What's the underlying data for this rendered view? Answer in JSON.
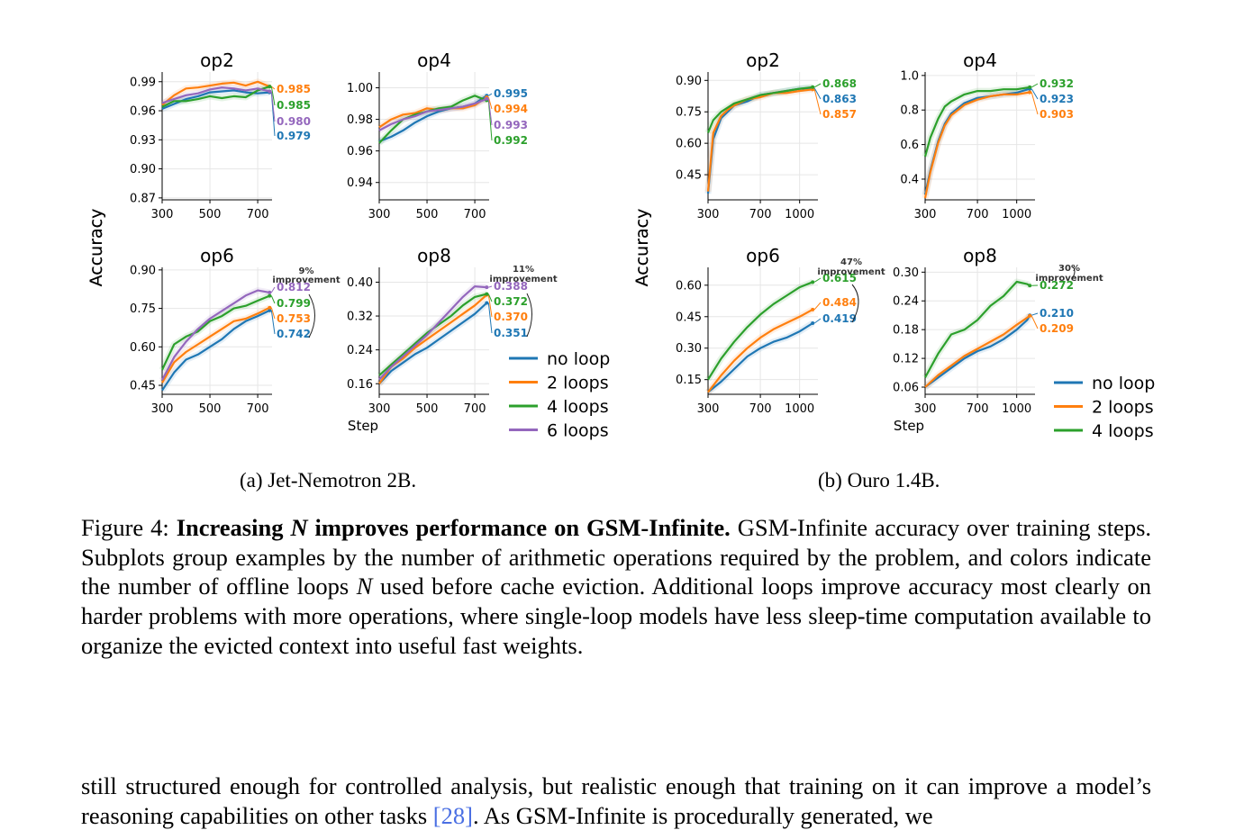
{
  "chart_data": [
    {
      "type": "line",
      "panel_group": "a",
      "title": "op2",
      "ylabel": "Accuracy",
      "xlabel": "",
      "xlim": [
        300,
        760
      ],
      "ylim": [
        0.868,
        1.0
      ],
      "xticks": [
        300,
        500,
        700
      ],
      "yticks": [
        "0.87",
        "0.90",
        "0.93",
        "0.96",
        "0.99"
      ],
      "x": [
        300,
        350,
        400,
        450,
        500,
        550,
        600,
        650,
        700,
        750
      ],
      "series": [
        {
          "name": "no loop",
          "color": "#1f77b4",
          "values": [
            0.962,
            0.967,
            0.972,
            0.975,
            0.979,
            0.98,
            0.981,
            0.979,
            0.978,
            0.979
          ],
          "end_label": "0.979"
        },
        {
          "name": "2 loops",
          "color": "#ff7f0e",
          "values": [
            0.966,
            0.976,
            0.983,
            0.984,
            0.986,
            0.988,
            0.989,
            0.986,
            0.99,
            0.985
          ],
          "end_label": "0.985"
        },
        {
          "name": "4 loops",
          "color": "#2ca02c",
          "values": [
            0.964,
            0.97,
            0.97,
            0.972,
            0.975,
            0.973,
            0.975,
            0.974,
            0.981,
            0.985
          ],
          "end_label": "0.985"
        },
        {
          "name": "6 loops",
          "color": "#9467bd",
          "values": [
            0.968,
            0.972,
            0.976,
            0.978,
            0.982,
            0.984,
            0.983,
            0.981,
            0.983,
            0.98
          ],
          "end_label": "0.980"
        }
      ]
    },
    {
      "type": "line",
      "panel_group": "a",
      "title": "op4",
      "xlabel": "",
      "xlim": [
        300,
        760
      ],
      "ylim": [
        0.929,
        1.01
      ],
      "xticks": [
        300,
        500,
        700
      ],
      "yticks": [
        "0.94",
        "0.96",
        "0.98",
        "1.00"
      ],
      "x": [
        300,
        350,
        400,
        450,
        500,
        550,
        600,
        650,
        700,
        750
      ],
      "series": [
        {
          "name": "no loop",
          "color": "#1f77b4",
          "values": [
            0.966,
            0.969,
            0.973,
            0.978,
            0.982,
            0.985,
            0.987,
            0.988,
            0.99,
            0.995
          ],
          "end_label": "0.995"
        },
        {
          "name": "2 loops",
          "color": "#ff7f0e",
          "values": [
            0.975,
            0.98,
            0.983,
            0.984,
            0.987,
            0.986,
            0.987,
            0.987,
            0.989,
            0.994
          ],
          "end_label": "0.994"
        },
        {
          "name": "4 loops",
          "color": "#2ca02c",
          "values": [
            0.965,
            0.973,
            0.98,
            0.983,
            0.985,
            0.987,
            0.988,
            0.992,
            0.995,
            0.992
          ],
          "end_label": "0.992"
        },
        {
          "name": "6 loops",
          "color": "#9467bd",
          "values": [
            0.973,
            0.977,
            0.98,
            0.982,
            0.985,
            0.986,
            0.987,
            0.988,
            0.99,
            0.993
          ],
          "end_label": "0.993"
        }
      ]
    },
    {
      "type": "line",
      "panel_group": "a",
      "title": "op6",
      "ylabel": "Accuracy",
      "xlabel": "",
      "xlim": [
        300,
        760
      ],
      "ylim": [
        0.415,
        0.91
      ],
      "xticks": [
        300,
        500,
        700
      ],
      "yticks": [
        "0.45",
        "0.60",
        "0.75",
        "0.90"
      ],
      "x": [
        300,
        350,
        400,
        450,
        500,
        550,
        600,
        650,
        700,
        750
      ],
      "series": [
        {
          "name": "no loop",
          "color": "#1f77b4",
          "values": [
            0.43,
            0.5,
            0.55,
            0.57,
            0.6,
            0.63,
            0.67,
            0.7,
            0.72,
            0.742
          ],
          "end_label": "0.742"
        },
        {
          "name": "2 loops",
          "color": "#ff7f0e",
          "values": [
            0.46,
            0.54,
            0.58,
            0.61,
            0.64,
            0.67,
            0.7,
            0.71,
            0.73,
            0.753
          ],
          "end_label": "0.753"
        },
        {
          "name": "4 loops",
          "color": "#2ca02c",
          "values": [
            0.51,
            0.61,
            0.64,
            0.66,
            0.7,
            0.72,
            0.75,
            0.76,
            0.78,
            0.799
          ],
          "end_label": "0.799"
        },
        {
          "name": "6 loops",
          "color": "#9467bd",
          "values": [
            0.47,
            0.56,
            0.62,
            0.67,
            0.71,
            0.74,
            0.77,
            0.8,
            0.82,
            0.812
          ],
          "end_label": "0.812"
        }
      ],
      "annotation": [
        "9%",
        "improvement"
      ]
    },
    {
      "type": "line",
      "panel_group": "a",
      "title": "op8",
      "xlabel": "Step",
      "xlim": [
        300,
        760
      ],
      "ylim": [
        0.135,
        0.435
      ],
      "xticks": [
        300,
        500,
        700
      ],
      "yticks": [
        "0.16",
        "0.24",
        "0.32",
        "0.40"
      ],
      "x": [
        300,
        350,
        400,
        450,
        500,
        550,
        600,
        650,
        700,
        750
      ],
      "series": [
        {
          "name": "no loop",
          "color": "#1f77b4",
          "values": [
            0.16,
            0.19,
            0.21,
            0.23,
            0.245,
            0.265,
            0.285,
            0.305,
            0.325,
            0.351
          ],
          "end_label": "0.351"
        },
        {
          "name": "2 loops",
          "color": "#ff7f0e",
          "values": [
            0.16,
            0.2,
            0.22,
            0.245,
            0.265,
            0.285,
            0.305,
            0.325,
            0.345,
            0.37
          ],
          "end_label": "0.370"
        },
        {
          "name": "4 loops",
          "color": "#2ca02c",
          "values": [
            0.18,
            0.205,
            0.23,
            0.255,
            0.28,
            0.3,
            0.32,
            0.345,
            0.365,
            0.372
          ],
          "end_label": "0.372"
        },
        {
          "name": "6 loops",
          "color": "#9467bd",
          "values": [
            0.17,
            0.2,
            0.225,
            0.25,
            0.275,
            0.305,
            0.335,
            0.365,
            0.39,
            0.388
          ],
          "end_label": "0.388"
        }
      ],
      "annotation": [
        "11%",
        "improvement"
      ]
    },
    {
      "type": "line",
      "panel_group": "b",
      "title": "op2",
      "ylabel": "Accuracy",
      "xlabel": "",
      "xlim": [
        300,
        1140
      ],
      "ylim": [
        0.33,
        0.94
      ],
      "xticks": [
        300,
        700,
        1000
      ],
      "yticks": [
        "0.45",
        "0.60",
        "0.75",
        "0.90"
      ],
      "x": [
        300,
        340,
        400,
        450,
        500,
        600,
        700,
        800,
        900,
        1000,
        1100
      ],
      "series": [
        {
          "name": "no loop",
          "color": "#1f77b4",
          "values": [
            0.36,
            0.62,
            0.72,
            0.75,
            0.78,
            0.8,
            0.83,
            0.84,
            0.85,
            0.86,
            0.863
          ],
          "end_label": "0.863"
        },
        {
          "name": "2 loops",
          "color": "#ff7f0e",
          "values": [
            0.37,
            0.65,
            0.73,
            0.76,
            0.78,
            0.81,
            0.82,
            0.84,
            0.84,
            0.85,
            0.857
          ],
          "end_label": "0.857"
        },
        {
          "name": "4 loops",
          "color": "#2ca02c",
          "values": [
            0.65,
            0.71,
            0.75,
            0.77,
            0.79,
            0.81,
            0.83,
            0.84,
            0.85,
            0.86,
            0.868
          ],
          "end_label": "0.868"
        }
      ]
    },
    {
      "type": "line",
      "panel_group": "b",
      "title": "op4",
      "xlabel": "",
      "xlim": [
        300,
        1140
      ],
      "ylim": [
        0.28,
        1.02
      ],
      "xticks": [
        300,
        700,
        1000
      ],
      "yticks": [
        "0.4",
        "0.6",
        "0.8",
        "1.0"
      ],
      "x": [
        300,
        340,
        400,
        450,
        500,
        600,
        700,
        800,
        900,
        1000,
        1100
      ],
      "series": [
        {
          "name": "no loop",
          "color": "#1f77b4",
          "values": [
            0.31,
            0.45,
            0.62,
            0.72,
            0.78,
            0.84,
            0.87,
            0.88,
            0.89,
            0.9,
            0.923
          ],
          "end_label": "0.923"
        },
        {
          "name": "2 loops",
          "color": "#ff7f0e",
          "values": [
            0.29,
            0.44,
            0.61,
            0.71,
            0.77,
            0.83,
            0.86,
            0.88,
            0.89,
            0.89,
            0.903
          ],
          "end_label": "0.903"
        },
        {
          "name": "4 loops",
          "color": "#2ca02c",
          "values": [
            0.53,
            0.64,
            0.75,
            0.82,
            0.85,
            0.89,
            0.91,
            0.91,
            0.92,
            0.92,
            0.932
          ],
          "end_label": "0.932"
        }
      ]
    },
    {
      "type": "line",
      "panel_group": "b",
      "title": "op6",
      "ylabel": "Accuracy",
      "xlabel": "",
      "xlim": [
        300,
        1140
      ],
      "ylim": [
        0.08,
        0.685
      ],
      "xticks": [
        300,
        700,
        1000
      ],
      "yticks": [
        "0.15",
        "0.30",
        "0.45",
        "0.60"
      ],
      "x": [
        300,
        400,
        500,
        600,
        700,
        800,
        900,
        1000,
        1100
      ],
      "series": [
        {
          "name": "no loop",
          "color": "#1f77b4",
          "values": [
            0.09,
            0.14,
            0.2,
            0.26,
            0.3,
            0.33,
            0.35,
            0.38,
            0.419
          ],
          "end_label": "0.419"
        },
        {
          "name": "2 loops",
          "color": "#ff7f0e",
          "values": [
            0.09,
            0.17,
            0.24,
            0.3,
            0.35,
            0.39,
            0.42,
            0.45,
            0.484
          ],
          "end_label": "0.484"
        },
        {
          "name": "4 loops",
          "color": "#2ca02c",
          "values": [
            0.15,
            0.25,
            0.33,
            0.4,
            0.46,
            0.51,
            0.55,
            0.59,
            0.615
          ],
          "end_label": "0.615"
        }
      ],
      "annotation": [
        "47%",
        "improvement"
      ]
    },
    {
      "type": "line",
      "panel_group": "b",
      "title": "op8",
      "xlabel": "Step",
      "xlim": [
        300,
        1140
      ],
      "ylim": [
        0.045,
        0.31
      ],
      "xticks": [
        300,
        700,
        1000
      ],
      "yticks": [
        "0.06",
        "0.12",
        "0.18",
        "0.24",
        "0.30"
      ],
      "x": [
        300,
        400,
        500,
        600,
        700,
        800,
        900,
        1000,
        1080,
        1100
      ],
      "series": [
        {
          "name": "no loop",
          "color": "#1f77b4",
          "values": [
            0.06,
            0.08,
            0.1,
            0.12,
            0.135,
            0.145,
            0.16,
            0.18,
            0.2,
            0.21
          ],
          "end_label": "0.210"
        },
        {
          "name": "2 loops",
          "color": "#ff7f0e",
          "values": [
            0.06,
            0.085,
            0.105,
            0.125,
            0.14,
            0.155,
            0.17,
            0.19,
            0.205,
            0.209
          ],
          "end_label": "0.209"
        },
        {
          "name": "4 loops",
          "color": "#2ca02c",
          "values": [
            0.08,
            0.13,
            0.17,
            0.18,
            0.2,
            0.23,
            0.25,
            0.28,
            0.275,
            0.272
          ],
          "end_label": "0.272"
        }
      ],
      "annotation": [
        "30%",
        "improvement"
      ]
    }
  ],
  "legends": {
    "a": [
      "no loop",
      "2 loops",
      "4 loops",
      "6 loops"
    ],
    "b": [
      "no loop",
      "2 loops",
      "4 loops"
    ]
  },
  "colors": {
    "no loop": "#1f77b4",
    "2 loops": "#ff7f0e",
    "4 loops": "#2ca02c",
    "6 loops": "#9467bd"
  },
  "subcaptions": {
    "a": "(a) Jet-Nemotron 2B.",
    "b": "(b) Ouro 1.4B."
  },
  "caption": {
    "label": "Figure 4:",
    "bold_pre": "Increasing",
    "bold_var": "N",
    "bold_post": "improves performance on GSM-Infinite.",
    "text_1": "GSM-Infinite accuracy over training steps. Subplots group examples by the number of arithmetic operations required by the problem, and colors indicate the number of offline loops",
    "var": "N",
    "text_2": "used before cache eviction. Additional loops improve accuracy most clearly on harder problems with more operations, where single-loop models have less sleep-time computation available to organize the evicted context into useful fast weights."
  },
  "body_text": {
    "line_1": "still structured enough for controlled analysis, but realistic enough that training on it can improve a",
    "line_2_pre": "model’s reasoning capabilities on other tasks",
    "cite": "[28]",
    "line_2_post": ". As GSM-Infinite is procedurally generated, we"
  }
}
